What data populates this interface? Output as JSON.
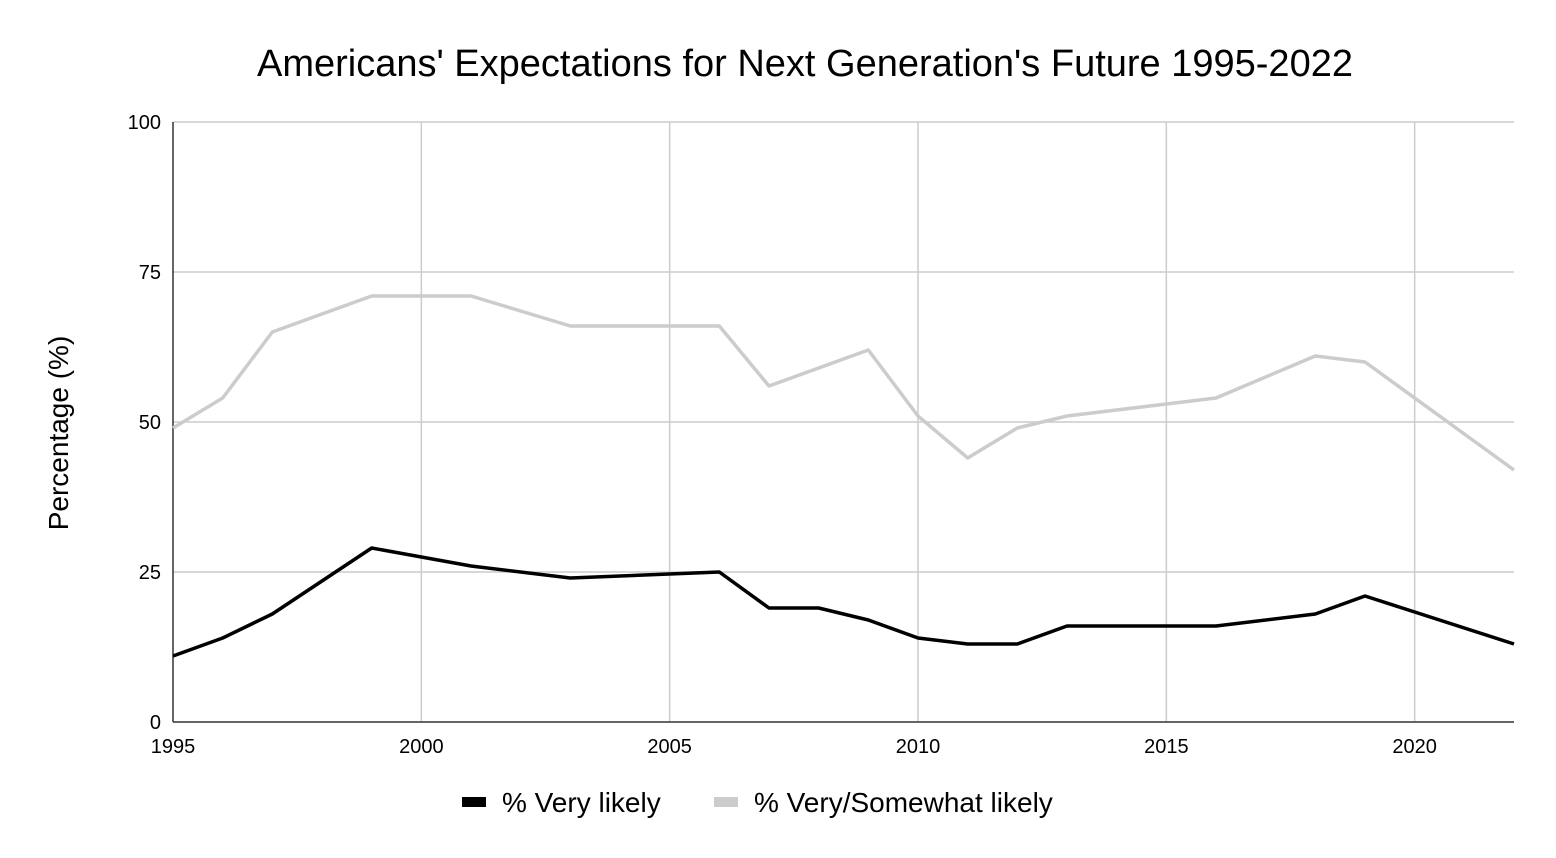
{
  "chart_data": {
    "type": "line",
    "title": "Americans' Expectations for Next Generation's Future 1995-2022",
    "xlabel": "",
    "ylabel": "Percentage (%)",
    "xlim": [
      1995,
      2022
    ],
    "ylim": [
      0,
      100
    ],
    "x_ticks": [
      "1995",
      "2000",
      "2005",
      "2010",
      "2015",
      "2020"
    ],
    "y_ticks": [
      "0",
      "25",
      "50",
      "75",
      "100"
    ],
    "grid": true,
    "legend_position": "bottom",
    "series": [
      {
        "name": "% Very likely",
        "color": "#000000",
        "points": [
          [
            1995,
            11
          ],
          [
            1996,
            14
          ],
          [
            1997,
            18
          ],
          [
            1999,
            29
          ],
          [
            2001,
            26
          ],
          [
            2003,
            24
          ],
          [
            2006,
            25
          ],
          [
            2007,
            19
          ],
          [
            2008,
            19
          ],
          [
            2009,
            17
          ],
          [
            2010,
            14
          ],
          [
            2011,
            13
          ],
          [
            2012,
            13
          ],
          [
            2013,
            16
          ],
          [
            2016,
            16
          ],
          [
            2018,
            18
          ],
          [
            2019,
            21
          ],
          [
            2022,
            13
          ]
        ]
      },
      {
        "name": "% Very/Somewhat likely",
        "color": "#cccccc",
        "points": [
          [
            1995,
            49
          ],
          [
            1996,
            54
          ],
          [
            1997,
            65
          ],
          [
            1999,
            71
          ],
          [
            2001,
            71
          ],
          [
            2003,
            66
          ],
          [
            2006,
            66
          ],
          [
            2007,
            56
          ],
          [
            2009,
            62
          ],
          [
            2010,
            51
          ],
          [
            2011,
            44
          ],
          [
            2012,
            49
          ],
          [
            2013,
            51
          ],
          [
            2016,
            54
          ],
          [
            2018,
            61
          ],
          [
            2019,
            60
          ],
          [
            2022,
            42
          ]
        ]
      }
    ]
  }
}
